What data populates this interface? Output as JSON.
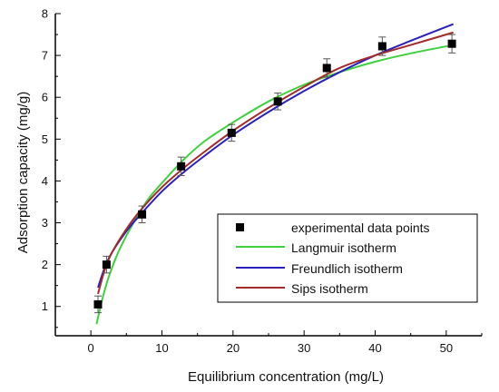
{
  "chart_data": {
    "type": "scatter",
    "xlabel": "Equilibrium concentration (mg/L)",
    "ylabel": "Adsorption capacity (mg/g)",
    "xlim": [
      -5,
      55
    ],
    "ylim": [
      0.3,
      8
    ],
    "xticks": [
      0,
      10,
      20,
      30,
      40,
      50
    ],
    "yticks": [
      1,
      2,
      3,
      4,
      5,
      6,
      7,
      8
    ],
    "grid": false,
    "legend_position": "bottom-right",
    "colors": {
      "points": "#000000",
      "langmuir": "#3dd13d",
      "freundlich": "#2a1fbf",
      "sips": "#a52a2a",
      "error_bars": "#555555",
      "axes": "#000000"
    },
    "points": {
      "name": "experimental data points",
      "x": [
        1.0,
        2.2,
        7.2,
        12.7,
        19.8,
        26.3,
        33.2,
        41.0,
        50.8
      ],
      "y": [
        1.05,
        2.0,
        3.2,
        4.35,
        5.15,
        5.9,
        6.7,
        7.22,
        7.28
      ],
      "err": [
        0.2,
        0.2,
        0.2,
        0.22,
        0.2,
        0.2,
        0.22,
        0.22,
        0.22
      ]
    },
    "series": [
      {
        "name": "Langmuir isotherm",
        "x": [
          0.8,
          1.5,
          2.5,
          4,
          6,
          8,
          10,
          13,
          16,
          20,
          25,
          30,
          35,
          40,
          45,
          51
        ],
        "y": [
          0.58,
          1.1,
          1.7,
          2.35,
          3.0,
          3.55,
          3.95,
          4.5,
          4.95,
          5.4,
          5.9,
          6.3,
          6.6,
          6.85,
          7.05,
          7.25
        ]
      },
      {
        "name": "Freundlich isotherm",
        "x": [
          1.0,
          2,
          3,
          5,
          7,
          10,
          13,
          16,
          20,
          25,
          30,
          35,
          40,
          45,
          51
        ],
        "y": [
          1.45,
          1.95,
          2.3,
          2.8,
          3.2,
          3.75,
          4.2,
          4.6,
          5.1,
          5.65,
          6.15,
          6.6,
          7.0,
          7.35,
          7.75
        ]
      },
      {
        "name": "Sips isotherm",
        "x": [
          1.0,
          2,
          3,
          5,
          7,
          10,
          13,
          16,
          20,
          25,
          30,
          35,
          40,
          45,
          51
        ],
        "y": [
          1.3,
          1.9,
          2.3,
          2.85,
          3.3,
          3.85,
          4.3,
          4.7,
          5.2,
          5.75,
          6.25,
          6.7,
          7.0,
          7.25,
          7.55
        ]
      }
    ]
  }
}
